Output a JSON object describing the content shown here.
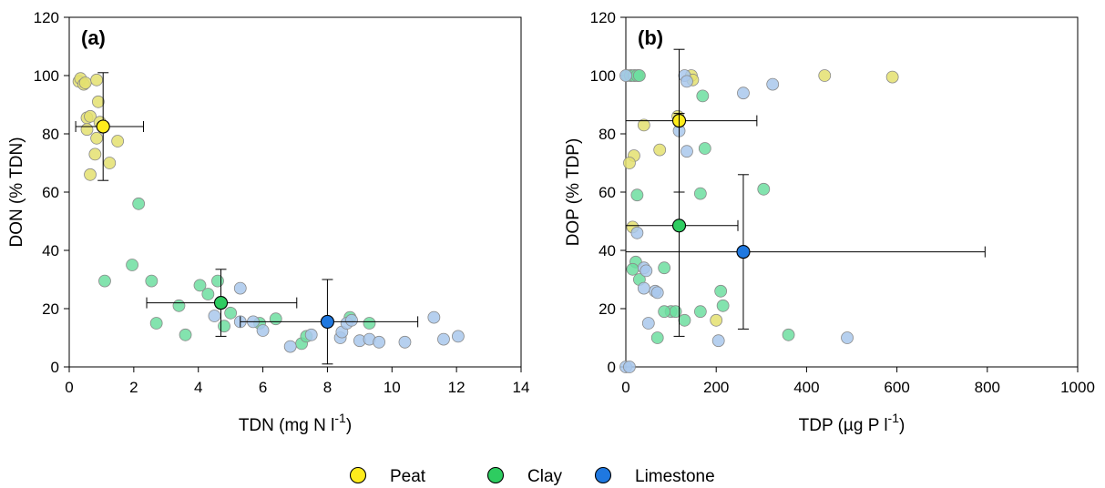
{
  "chart_data": [
    {
      "type": "scatter",
      "panel_label": "(a)",
      "xlabel": "TDN (mg N l",
      "xlabel_sup": "-1",
      "xlabel_end": ")",
      "ylabel": "DON (% TDN)",
      "xlim": [
        0,
        14
      ],
      "ylim": [
        0,
        120
      ],
      "xticks": [
        0,
        2,
        4,
        6,
        8,
        10,
        12,
        14
      ],
      "yticks": [
        0,
        20,
        40,
        60,
        80,
        100,
        120
      ],
      "grid": false,
      "series": [
        {
          "name": "Peat",
          "points": [
            [
              0.3,
              98
            ],
            [
              0.35,
              99
            ],
            [
              0.45,
              97
            ],
            [
              0.5,
              97.5
            ],
            [
              0.85,
              98.5
            ],
            [
              0.9,
              91
            ],
            [
              0.55,
              85.5
            ],
            [
              0.65,
              86
            ],
            [
              0.55,
              81.5
            ],
            [
              0.95,
              84
            ],
            [
              0.85,
              78.5
            ],
            [
              1.5,
              77.5
            ],
            [
              0.8,
              73
            ],
            [
              0.65,
              66
            ],
            [
              1.25,
              70
            ]
          ],
          "mean": {
            "x": 1.05,
            "y": 82.5,
            "xerr": [
              0.2,
              2.3
            ],
            "yerr": [
              64,
              101
            ]
          }
        },
        {
          "name": "Clay",
          "points": [
            [
              2.15,
              56
            ],
            [
              1.1,
              29.5
            ],
            [
              1.95,
              35
            ],
            [
              2.55,
              29.5
            ],
            [
              2.7,
              15
            ],
            [
              3.4,
              21
            ],
            [
              3.6,
              11
            ],
            [
              4.05,
              28
            ],
            [
              4.3,
              25
            ],
            [
              4.6,
              29.5
            ],
            [
              4.8,
              14
            ],
            [
              5.0,
              18.5
            ],
            [
              5.9,
              15
            ],
            [
              6.4,
              16.5
            ],
            [
              7.2,
              8
            ],
            [
              7.35,
              10.5
            ],
            [
              8.7,
              17
            ],
            [
              9.3,
              15
            ]
          ],
          "mean": {
            "x": 4.7,
            "y": 22,
            "xerr": [
              2.4,
              7.05
            ],
            "yerr": [
              10.5,
              33.5
            ]
          }
        },
        {
          "name": "Limestone",
          "points": [
            [
              4.5,
              17.5
            ],
            [
              5.3,
              27
            ],
            [
              5.3,
              15.5
            ],
            [
              5.7,
              15.5
            ],
            [
              6.0,
              12.5
            ],
            [
              6.85,
              7
            ],
            [
              7.5,
              11
            ],
            [
              8.4,
              10
            ],
            [
              8.45,
              12
            ],
            [
              8.6,
              15
            ],
            [
              8.75,
              16
            ],
            [
              9.0,
              9
            ],
            [
              9.3,
              9.5
            ],
            [
              9.6,
              8.5
            ],
            [
              10.4,
              8.5
            ],
            [
              11.3,
              17
            ],
            [
              11.6,
              9.5
            ],
            [
              12.05,
              10.5
            ]
          ],
          "mean": {
            "x": 8.0,
            "y": 15.5,
            "xerr": [
              5.3,
              10.8
            ],
            "yerr": [
              1,
              30
            ]
          }
        }
      ]
    },
    {
      "type": "scatter",
      "panel_label": "(b)",
      "xlabel": "TDP (µg P l",
      "xlabel_sup": "-1",
      "xlabel_end": ")",
      "ylabel": "DOP (% TDP)",
      "xlim": [
        0,
        1000
      ],
      "ylim": [
        0,
        120
      ],
      "xticks": [
        0,
        200,
        400,
        600,
        800,
        1000
      ],
      "yticks": [
        0,
        20,
        40,
        60,
        80,
        100,
        120
      ],
      "grid": false,
      "series": [
        {
          "name": "Peat",
          "points": [
            [
              12,
              100
            ],
            [
              20,
              100
            ],
            [
              28,
              100
            ],
            [
              145,
              100
            ],
            [
              148,
              98.5
            ],
            [
              440,
              100
            ],
            [
              590,
              99.5
            ],
            [
              115,
              86
            ],
            [
              40,
              83
            ],
            [
              75,
              74.5
            ],
            [
              18,
              72.5
            ],
            [
              8,
              70
            ],
            [
              15,
              48
            ],
            [
              200,
              16
            ]
          ],
          "mean": {
            "x": 118,
            "y": 84.5,
            "xerr": [
              0,
              290
            ],
            "yerr": [
              60,
              109
            ]
          }
        },
        {
          "name": "Clay",
          "points": [
            [
              3,
              100
            ],
            [
              10,
              100
            ],
            [
              18,
              100
            ],
            [
              25,
              100
            ],
            [
              30,
              100
            ],
            [
              170,
              93
            ],
            [
              175,
              75
            ],
            [
              25,
              59
            ],
            [
              165,
              59.5
            ],
            [
              305,
              61
            ],
            [
              22,
              36
            ],
            [
              30,
              30
            ],
            [
              85,
              34
            ],
            [
              15,
              33.5
            ],
            [
              210,
              26
            ],
            [
              215,
              21
            ],
            [
              100,
              19
            ],
            [
              110,
              19
            ],
            [
              85,
              19
            ],
            [
              165,
              19
            ],
            [
              130,
              16
            ],
            [
              70,
              10
            ],
            [
              360,
              11
            ]
          ],
          "mean": {
            "x": 118,
            "y": 48.5,
            "xerr": [
              0,
              248
            ],
            "yerr": [
              10.5,
              87
            ]
          }
        },
        {
          "name": "Limestone",
          "points": [
            [
              0,
              100
            ],
            [
              130,
              100
            ],
            [
              135,
              98
            ],
            [
              260,
              94
            ],
            [
              325,
              97
            ],
            [
              118,
              81
            ],
            [
              135,
              74
            ],
            [
              25,
              46
            ],
            [
              40,
              34
            ],
            [
              45,
              33
            ],
            [
              40,
              27
            ],
            [
              65,
              26
            ],
            [
              70,
              25.5
            ],
            [
              50,
              15
            ],
            [
              205,
              9
            ],
            [
              490,
              10
            ],
            [
              0,
              0
            ],
            [
              8,
              0
            ]
          ],
          "mean": {
            "x": 260,
            "y": 39.5,
            "xerr": [
              0,
              795
            ],
            "yerr": [
              13,
              66
            ]
          }
        }
      ]
    }
  ],
  "legend": [
    {
      "label": "Peat",
      "mean_color": "#ffec1c",
      "point_color": "#e4e070"
    },
    {
      "label": "Clay",
      "mean_color": "#2ecc60",
      "point_color": "#6ddea0"
    },
    {
      "label": "Limestone",
      "mean_color": "#1f78e0",
      "point_color": "#a9c8ec"
    }
  ]
}
